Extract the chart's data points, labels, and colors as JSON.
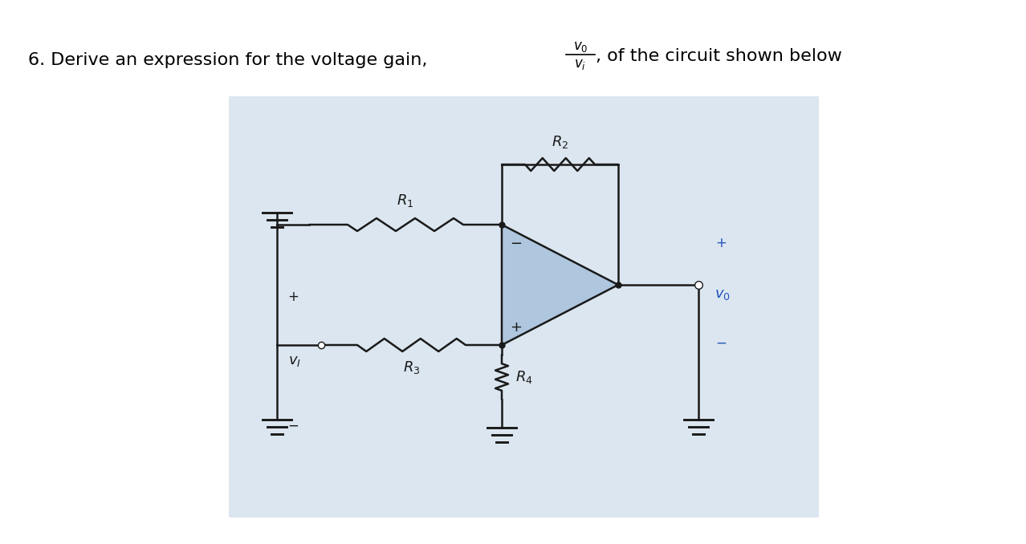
{
  "fig_bg": "#ffffff",
  "bg_color": "#dce6f0",
  "opamp_fill": "#aec6de",
  "wire_color": "#1a1a1a",
  "vo_color": "#2255bb",
  "title_main": "6. Derive an expression for the voltage gain,",
  "title_suffix": ", of the circuit shown below",
  "frac_num": "$v_0$",
  "frac_den": "$v_i$",
  "R1_label": "$R_1$",
  "R2_label": "$R_2$",
  "R3_label": "$R_3$",
  "R4_label": "$R_4$",
  "vi_label": "$v_I$",
  "vo_label": "$v_0$"
}
